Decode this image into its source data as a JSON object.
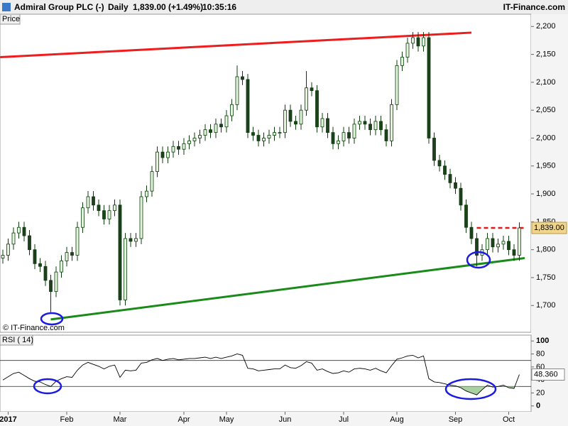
{
  "header": {
    "title": "Admiral Group PLC (-)",
    "period": "Daily",
    "last": "1,839.00 (+1.49%)",
    "time": "10:35:16",
    "source": "IT-Finance.com"
  },
  "chart_data": [
    {
      "type": "candlestick",
      "ylabel": "Price",
      "watermark": "© IT-Finance.com",
      "up_color": "#e4f4dc",
      "down_color": "#1f3f1f",
      "outline_color": "#0b3d0b",
      "categories": [
        null,
        "2017",
        null,
        null,
        null,
        null,
        null,
        null,
        null,
        null,
        null,
        null,
        "Feb",
        null,
        null,
        null,
        null,
        null,
        null,
        null,
        null,
        null,
        "Mar",
        null,
        null,
        null,
        null,
        null,
        null,
        null,
        null,
        null,
        null,
        null,
        "Apr",
        null,
        null,
        null,
        null,
        null,
        null,
        null,
        "May",
        null,
        null,
        null,
        null,
        null,
        null,
        null,
        null,
        null,
        null,
        "Jun",
        null,
        null,
        null,
        null,
        null,
        null,
        null,
        null,
        null,
        null,
        "Jul",
        null,
        null,
        null,
        null,
        null,
        null,
        null,
        null,
        null,
        "Aug",
        null,
        null,
        null,
        null,
        null,
        null,
        null,
        null,
        null,
        null,
        "Sep",
        null,
        null,
        null,
        null,
        null,
        null,
        null,
        null,
        null,
        "Oct",
        null,
        null
      ],
      "open": [
        1785,
        1790,
        1810,
        1830,
        1840,
        1825,
        1800,
        1775,
        1770,
        1745,
        1725,
        1760,
        1780,
        1795,
        1790,
        1840,
        1875,
        1895,
        1880,
        1870,
        1855,
        1870,
        1880,
        1710,
        1820,
        1815,
        1820,
        1895,
        1905,
        1940,
        1975,
        1965,
        1975,
        1985,
        1980,
        1990,
        1995,
        2000,
        2005,
        2015,
        2010,
        2025,
        2020,
        2040,
        2060,
        2110,
        2105,
        2010,
        2005,
        1995,
        2000,
        2005,
        2010,
        2010,
        2050,
        2030,
        2025,
        2050,
        2090,
        2085,
        2020,
        2035,
        2010,
        1990,
        1995,
        2010,
        2000,
        2025,
        2030,
        2025,
        2015,
        2030,
        2015,
        1995,
        2060,
        2130,
        2145,
        2170,
        2180,
        2165,
        2180,
        2000,
        1960,
        1950,
        1935,
        1920,
        1910,
        1880,
        1840,
        1820,
        1790,
        1800,
        1820,
        1805,
        1810,
        1815,
        1800,
        1790
      ],
      "high": [
        1800,
        1820,
        1840,
        1850,
        1850,
        1835,
        1810,
        1785,
        1780,
        1755,
        1770,
        1790,
        1805,
        1805,
        1850,
        1885,
        1905,
        1905,
        1890,
        1880,
        1880,
        1890,
        1890,
        1830,
        1830,
        1830,
        1905,
        1915,
        1950,
        1985,
        1985,
        1985,
        1995,
        1995,
        2000,
        2005,
        2010,
        2015,
        2025,
        2025,
        2035,
        2035,
        2050,
        2070,
        2130,
        2120,
        2115,
        2020,
        2015,
        2010,
        2015,
        2020,
        2020,
        2060,
        2060,
        2040,
        2060,
        2120,
        2100,
        2095,
        2045,
        2045,
        2020,
        2005,
        2020,
        2020,
        2035,
        2040,
        2040,
        2035,
        2040,
        2040,
        2025,
        2070,
        2140,
        2155,
        2180,
        2190,
        2190,
        2190,
        2190,
        2010,
        1970,
        1960,
        1945,
        1930,
        1920,
        1890,
        1850,
        1830,
        1810,
        1830,
        1830,
        1820,
        1825,
        1825,
        1810,
        1849
      ],
      "low": [
        1775,
        1780,
        1800,
        1820,
        1815,
        1790,
        1765,
        1760,
        1735,
        1688,
        1715,
        1750,
        1770,
        1780,
        1780,
        1830,
        1865,
        1870,
        1860,
        1845,
        1845,
        1860,
        1700,
        1700,
        1805,
        1805,
        1810,
        1885,
        1895,
        1930,
        1955,
        1955,
        1965,
        1970,
        1970,
        1980,
        1985,
        1990,
        1995,
        2000,
        2000,
        2010,
        2010,
        2030,
        2050,
        2095,
        2000,
        1995,
        1985,
        1985,
        1990,
        1995,
        2000,
        2000,
        2020,
        2015,
        2015,
        2040,
        2075,
        2010,
        2010,
        2000,
        1980,
        1980,
        1985,
        1990,
        1990,
        2015,
        2015,
        2005,
        2005,
        2005,
        1985,
        1985,
        2050,
        2120,
        2135,
        2160,
        2155,
        2155,
        1990,
        1950,
        1940,
        1925,
        1910,
        1900,
        1870,
        1830,
        1810,
        1770,
        1780,
        1790,
        1795,
        1795,
        1800,
        1790,
        1780,
        1780
      ],
      "close": [
        1790,
        1810,
        1830,
        1840,
        1825,
        1800,
        1775,
        1770,
        1745,
        1725,
        1760,
        1780,
        1795,
        1790,
        1840,
        1875,
        1895,
        1880,
        1870,
        1855,
        1870,
        1880,
        1710,
        1820,
        1815,
        1820,
        1895,
        1905,
        1940,
        1975,
        1965,
        1975,
        1985,
        1980,
        1990,
        1995,
        2000,
        2005,
        2015,
        2010,
        2025,
        2020,
        2040,
        2060,
        2110,
        2105,
        2010,
        2005,
        1995,
        2000,
        2005,
        2010,
        2010,
        2050,
        2030,
        2025,
        2050,
        2090,
        2085,
        2020,
        2035,
        2010,
        1990,
        1995,
        2010,
        2000,
        2025,
        2030,
        2025,
        2015,
        2030,
        2015,
        1995,
        2060,
        2130,
        2145,
        2170,
        2180,
        2165,
        2180,
        2000,
        1960,
        1950,
        1935,
        1920,
        1910,
        1880,
        1840,
        1820,
        1790,
        1800,
        1820,
        1805,
        1810,
        1815,
        1800,
        1790,
        1839
      ],
      "last": {
        "value": 1839,
        "label": "1,839.00"
      },
      "last_color": "#f0d58c",
      "ylim": [
        1652,
        2222
      ],
      "yticks": [
        {
          "value": 1700,
          "label": "1,700"
        },
        {
          "value": 1750,
          "label": "1,750"
        },
        {
          "value": 1800,
          "label": "1,800"
        },
        {
          "value": 1850,
          "label": "1,850"
        },
        {
          "value": 1900,
          "label": "1,900"
        },
        {
          "value": 1950,
          "label": "1,950"
        },
        {
          "value": 2000,
          "label": "2,000"
        },
        {
          "value": 2050,
          "label": "2,050"
        },
        {
          "value": 2100,
          "label": "2,100"
        },
        {
          "value": 2150,
          "label": "2,150"
        },
        {
          "value": 2200,
          "label": "2,200"
        }
      ],
      "trendlines": [
        {
          "color": "#ee1c1c",
          "x": [
            -0.5,
            88
          ],
          "y": [
            2145,
            2189
          ]
        },
        {
          "color": "#1a8a1a",
          "x": [
            9,
            98
          ],
          "y": [
            1675,
            1785
          ]
        }
      ],
      "resistance": {
        "color": "#dd1c1c",
        "x": [
          89,
          98
        ],
        "y": 1839
      }
    },
    {
      "type": "line",
      "title": "RSI ( 14)",
      "color": "#000000",
      "fill_color": "#a8d0a0",
      "values": [
        40,
        45,
        50,
        52,
        47,
        42,
        38,
        37,
        33,
        30,
        38,
        42,
        45,
        44,
        55,
        63,
        67,
        64,
        61,
        57,
        61,
        63,
        44,
        55,
        54,
        55,
        66,
        67,
        71,
        73,
        70,
        72,
        73,
        71,
        72,
        73,
        73,
        74,
        75,
        73,
        75,
        73,
        75,
        77,
        80,
        78,
        58,
        57,
        54,
        55,
        56,
        57,
        57,
        63,
        59,
        58,
        62,
        68,
        66,
        55,
        57,
        53,
        50,
        51,
        54,
        52,
        57,
        58,
        57,
        55,
        58,
        54,
        51,
        62,
        72,
        74,
        77,
        78,
        74,
        77,
        42,
        37,
        36,
        34,
        32,
        31,
        28,
        23,
        20,
        17,
        25,
        32,
        29,
        30,
        32,
        28,
        27,
        48.36
      ],
      "last": {
        "value": 48.36,
        "label": "48.360"
      },
      "levels": [
        30,
        70
      ],
      "ylim": [
        -9,
        109
      ],
      "yticks": [
        0,
        20,
        40,
        60,
        80,
        100
      ]
    }
  ]
}
